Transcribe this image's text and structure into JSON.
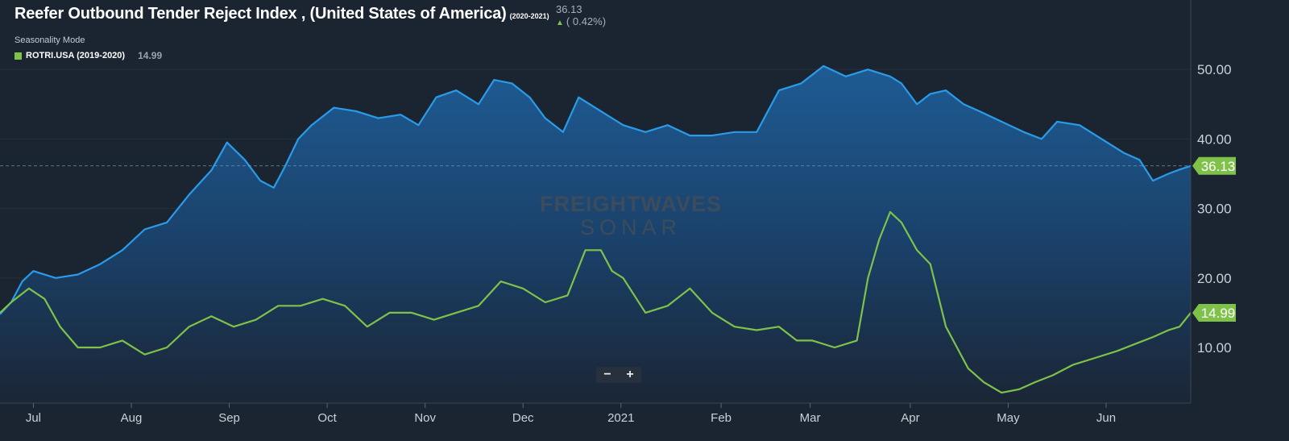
{
  "header": {
    "title": "Reefer Outbound Tender Reject Index , (United States of America)",
    "title_range": "(2020-2021)",
    "latest_value": "36.13",
    "change": "( 0.42%)"
  },
  "seasonality": {
    "mode_label": "Seasonality Mode",
    "legend_label": "ROTRI.USA (2019-2020)",
    "legend_value": "14.99"
  },
  "watermark": {
    "line1": "FREIGHTWAVES",
    "line2": "SONAR"
  },
  "zoom": {
    "minus": "−",
    "plus": "+"
  },
  "colors": {
    "primary": "#2a9be8",
    "seasonal": "#7ec24a",
    "background": "#1b2531"
  },
  "chart_data": {
    "type": "area",
    "x_unit": "weeks since start of chart (late June 2020)",
    "x_ticks": [
      {
        "x": 1.5,
        "label": "Jul"
      },
      {
        "x": 5.9,
        "label": "Aug"
      },
      {
        "x": 10.3,
        "label": "Sep"
      },
      {
        "x": 14.7,
        "label": "Oct"
      },
      {
        "x": 19.1,
        "label": "Nov"
      },
      {
        "x": 23.5,
        "label": "Dec"
      },
      {
        "x": 27.9,
        "label": "2021"
      },
      {
        "x": 32.4,
        "label": "Feb"
      },
      {
        "x": 36.4,
        "label": "Mar"
      },
      {
        "x": 40.9,
        "label": "Apr"
      },
      {
        "x": 45.3,
        "label": "May"
      },
      {
        "x": 49.7,
        "label": "Jun"
      }
    ],
    "y_ticks": [
      10,
      20,
      30,
      40,
      50
    ],
    "y_tick_labels": [
      "10.00",
      "20.00",
      "30.00",
      "40.00",
      "50.00"
    ],
    "ylim": [
      2,
      60
    ],
    "xlim": [
      0,
      53.5
    ],
    "series": [
      {
        "name": "ROTRI.USA (2020-2021)",
        "role": "primary",
        "end_label": "36.13",
        "points": [
          [
            0,
            14.8
          ],
          [
            0.5,
            16.5
          ],
          [
            1,
            19.5
          ],
          [
            1.5,
            21
          ],
          [
            2.5,
            20
          ],
          [
            3.5,
            20.5
          ],
          [
            4.5,
            22
          ],
          [
            5.5,
            24
          ],
          [
            6.5,
            27
          ],
          [
            7.5,
            28
          ],
          [
            8.5,
            32
          ],
          [
            9.5,
            35.5
          ],
          [
            10.2,
            39.5
          ],
          [
            11,
            37
          ],
          [
            11.7,
            34
          ],
          [
            12.3,
            33
          ],
          [
            12.8,
            36
          ],
          [
            13.4,
            40
          ],
          [
            14,
            42
          ],
          [
            15,
            44.5
          ],
          [
            16,
            44
          ],
          [
            17,
            43
          ],
          [
            18,
            43.5
          ],
          [
            18.8,
            42
          ],
          [
            19.6,
            46
          ],
          [
            20.5,
            47
          ],
          [
            21.5,
            45
          ],
          [
            22.2,
            48.5
          ],
          [
            23,
            48
          ],
          [
            23.8,
            46
          ],
          [
            24.5,
            43
          ],
          [
            25.3,
            41
          ],
          [
            26,
            46
          ],
          [
            27,
            44
          ],
          [
            28,
            42
          ],
          [
            29,
            41
          ],
          [
            30,
            42
          ],
          [
            31,
            40.5
          ],
          [
            32,
            40.5
          ],
          [
            33,
            41
          ],
          [
            34,
            41
          ],
          [
            35,
            47
          ],
          [
            36,
            48
          ],
          [
            37,
            50.5
          ],
          [
            38,
            49
          ],
          [
            39,
            50
          ],
          [
            40,
            49
          ],
          [
            40.5,
            48
          ],
          [
            41.2,
            45
          ],
          [
            41.8,
            46.5
          ],
          [
            42.5,
            47
          ],
          [
            43.3,
            45
          ],
          [
            44,
            44
          ],
          [
            45,
            42.5
          ],
          [
            46,
            41
          ],
          [
            46.8,
            40
          ],
          [
            47.5,
            42.5
          ],
          [
            48.5,
            42
          ],
          [
            49.5,
            40
          ],
          [
            50.5,
            38
          ],
          [
            51.2,
            37
          ],
          [
            51.8,
            34
          ],
          [
            52.5,
            35
          ],
          [
            53,
            35.6
          ],
          [
            53.5,
            36.13
          ]
        ]
      },
      {
        "name": "ROTRI.USA (2019-2020)",
        "role": "seasonal",
        "end_label": "14.99",
        "points": [
          [
            0,
            14.99
          ],
          [
            0.5,
            16.5
          ],
          [
            1.3,
            18.5
          ],
          [
            2,
            17
          ],
          [
            2.7,
            13
          ],
          [
            3.5,
            10
          ],
          [
            4.5,
            10
          ],
          [
            5.5,
            11
          ],
          [
            6.5,
            9
          ],
          [
            7.5,
            10
          ],
          [
            8.5,
            13
          ],
          [
            9.5,
            14.5
          ],
          [
            10.5,
            13
          ],
          [
            11.5,
            14
          ],
          [
            12.5,
            16
          ],
          [
            13.5,
            16
          ],
          [
            14.5,
            17
          ],
          [
            15.5,
            16
          ],
          [
            16.5,
            13
          ],
          [
            17.5,
            15
          ],
          [
            18.5,
            15
          ],
          [
            19.5,
            14
          ],
          [
            20.5,
            15
          ],
          [
            21.5,
            16
          ],
          [
            22.5,
            19.5
          ],
          [
            23.5,
            18.5
          ],
          [
            24.5,
            16.5
          ],
          [
            25.5,
            17.5
          ],
          [
            26.3,
            24
          ],
          [
            27,
            24
          ],
          [
            27.5,
            21
          ],
          [
            28,
            20
          ],
          [
            29,
            15
          ],
          [
            30,
            16
          ],
          [
            31,
            18.5
          ],
          [
            32,
            15
          ],
          [
            33,
            13
          ],
          [
            34,
            12.5
          ],
          [
            35,
            13
          ],
          [
            35.8,
            11
          ],
          [
            36.5,
            11
          ],
          [
            37.5,
            10
          ],
          [
            38.5,
            11
          ],
          [
            39,
            20
          ],
          [
            39.5,
            25.5
          ],
          [
            40,
            29.5
          ],
          [
            40.5,
            28
          ],
          [
            41.2,
            24
          ],
          [
            41.8,
            22
          ],
          [
            42.5,
            13
          ],
          [
            43,
            10
          ],
          [
            43.5,
            7
          ],
          [
            44.2,
            5
          ],
          [
            45,
            3.5
          ],
          [
            45.8,
            4
          ],
          [
            46.5,
            5
          ],
          [
            47.3,
            6
          ],
          [
            48.2,
            7.5
          ],
          [
            49.2,
            8.5
          ],
          [
            50.2,
            9.5
          ],
          [
            51,
            10.5
          ],
          [
            51.8,
            11.5
          ],
          [
            52.5,
            12.5
          ],
          [
            53,
            13
          ],
          [
            53.5,
            14.99
          ]
        ]
      }
    ]
  }
}
